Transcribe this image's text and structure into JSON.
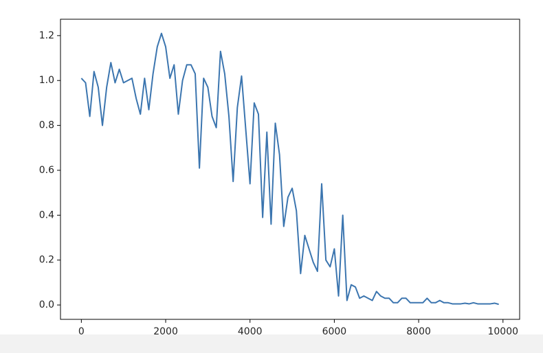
{
  "chart_data": {
    "type": "line",
    "x": [
      0,
      100,
      200,
      300,
      400,
      500,
      600,
      700,
      800,
      900,
      1000,
      1100,
      1200,
      1300,
      1400,
      1500,
      1600,
      1700,
      1800,
      1900,
      2000,
      2100,
      2200,
      2300,
      2400,
      2500,
      2600,
      2700,
      2800,
      2900,
      3000,
      3100,
      3200,
      3300,
      3400,
      3500,
      3600,
      3700,
      3800,
      3900,
      4000,
      4100,
      4200,
      4300,
      4400,
      4500,
      4600,
      4700,
      4800,
      4900,
      5000,
      5100,
      5200,
      5300,
      5400,
      5500,
      5600,
      5700,
      5800,
      5900,
      6000,
      6100,
      6200,
      6300,
      6400,
      6500,
      6600,
      6700,
      6800,
      6900,
      7000,
      7100,
      7200,
      7300,
      7400,
      7500,
      7600,
      7700,
      7800,
      7900,
      8000,
      8100,
      8200,
      8300,
      8400,
      8500,
      8600,
      8700,
      8800,
      8900,
      9000,
      9100,
      9200,
      9300,
      9400,
      9500,
      9600,
      9700,
      9800,
      9900
    ],
    "series": [
      {
        "color": "#3b75af",
        "values": [
          1.01,
          0.99,
          0.84,
          1.04,
          0.97,
          0.8,
          0.97,
          1.08,
          0.99,
          1.05,
          0.99,
          1.0,
          1.01,
          0.92,
          0.85,
          1.01,
          0.87,
          1.03,
          1.15,
          1.21,
          1.15,
          1.01,
          1.07,
          0.85,
          1.0,
          1.07,
          1.07,
          1.03,
          0.61,
          1.01,
          0.97,
          0.84,
          0.79,
          1.13,
          1.03,
          0.84,
          0.55,
          0.88,
          1.02,
          0.78,
          0.54,
          0.9,
          0.85,
          0.39,
          0.77,
          0.36,
          0.81,
          0.67,
          0.35,
          0.48,
          0.52,
          0.42,
          0.14,
          0.31,
          0.25,
          0.19,
          0.15,
          0.54,
          0.2,
          0.17,
          0.25,
          0.04,
          0.4,
          0.02,
          0.09,
          0.08,
          0.03,
          0.04,
          0.03,
          0.02,
          0.06,
          0.04,
          0.03,
          0.03,
          0.01,
          0.01,
          0.03,
          0.03,
          0.01,
          0.01,
          0.01,
          0.01,
          0.03,
          0.01,
          0.01,
          0.02,
          0.01,
          0.01,
          0.005,
          0.005,
          0.005,
          0.008,
          0.005,
          0.01,
          0.005,
          0.005,
          0.005,
          0.005,
          0.008,
          0.003
        ]
      }
    ],
    "xlim": [
      -495,
      10395
    ],
    "ylim": [
      -0.064,
      1.273
    ],
    "xticks": [
      0,
      2000,
      4000,
      6000,
      8000,
      10000
    ],
    "yticks": [
      {
        "value": 0,
        "label": "0.0"
      },
      0.2,
      0.4,
      0.6,
      0.8,
      {
        "value": 1,
        "label": "1.0"
      },
      1.2
    ]
  }
}
